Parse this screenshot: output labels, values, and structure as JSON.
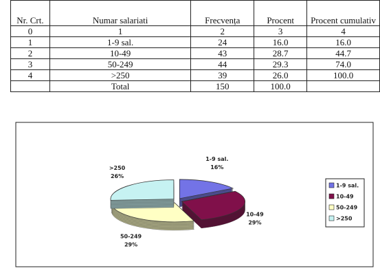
{
  "table": {
    "header": [
      "Nr. Crt.",
      "Numar salariati",
      "Frecvența",
      "Procent",
      "Procent cumulativ"
    ],
    "rows": [
      [
        "0",
        "1",
        "2",
        "3",
        "4"
      ],
      [
        "1",
        "1-9 sal.",
        "24",
        "16.0",
        "16.0"
      ],
      [
        "2",
        "10-49",
        "43",
        "28.7",
        "44.7"
      ],
      [
        "3",
        "50-249",
        "44",
        "29.3",
        "74.0"
      ],
      [
        "4",
        ">250",
        "39",
        "26.0",
        "100.0"
      ],
      [
        "",
        "Total",
        "150",
        "100.0",
        ""
      ]
    ]
  },
  "chart_data": {
    "type": "pie",
    "categories": [
      "1-9 sal.",
      "10-49",
      "50-249",
      ">250"
    ],
    "values": [
      16,
      29,
      29,
      26
    ],
    "value_labels": [
      "16%",
      "29%",
      "29%",
      "26%"
    ],
    "colors": [
      "#7373e6",
      "#80104a",
      "#ffffc4",
      "#c6f2f2"
    ]
  }
}
